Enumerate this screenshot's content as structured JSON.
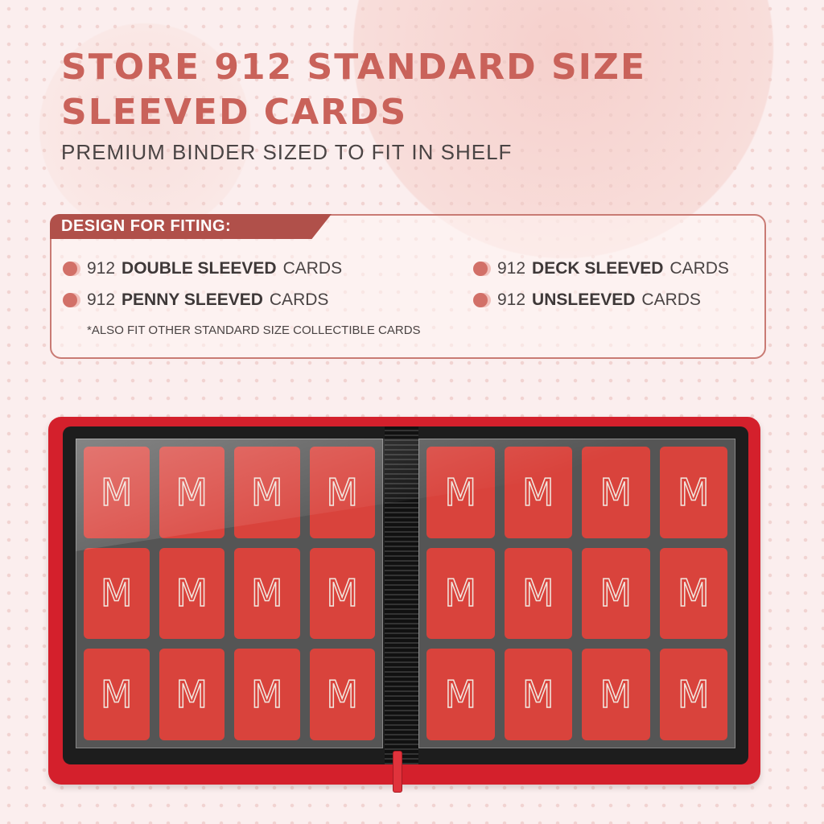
{
  "headline": {
    "line1": "STORE 912 STANDARD SIZE",
    "line2": "SLEEVED CARDS"
  },
  "subtitle": "PREMIUM BINDER SIZED TO FIT IN SHELF",
  "features": {
    "header": "DESIGN FOR FITING:",
    "items": [
      {
        "num": "912",
        "bold": "DOUBLE SLEEVED",
        "rest": "CARDS"
      },
      {
        "num": "912",
        "bold": "PENNY SLEEVED",
        "rest": "CARDS"
      },
      {
        "num": "912",
        "bold": "DECK SLEEVED",
        "rest": "CARDS"
      },
      {
        "num": "912",
        "bold": "UNSLEEVED",
        "rest": "CARDS"
      }
    ],
    "note": "*ALSO FIT OTHER STANDARD SIZE COLLECTIBLE CARDS"
  },
  "binder": {
    "card_logo": "M",
    "pages": 2,
    "pockets_per_page": 12,
    "color": "#d4202c"
  }
}
